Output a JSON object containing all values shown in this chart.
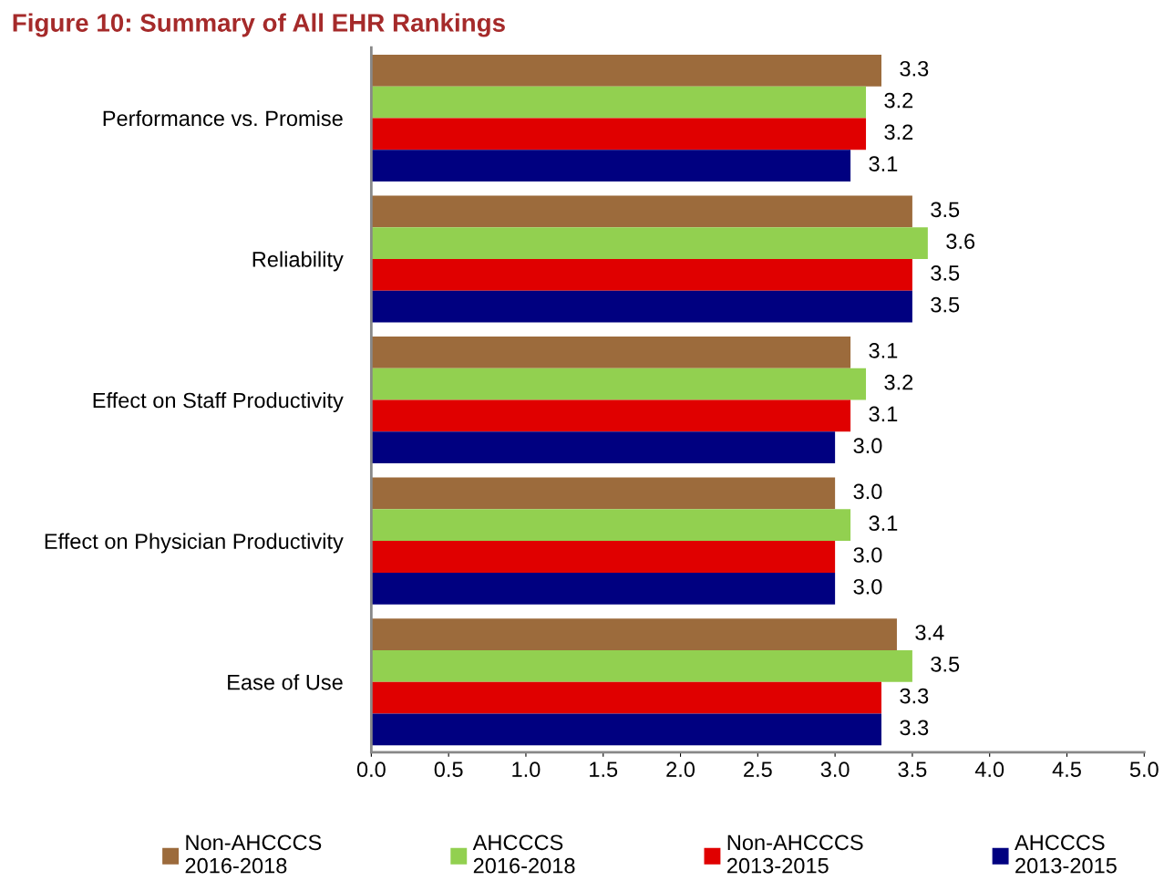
{
  "chart_data": {
    "type": "bar",
    "orientation": "horizontal",
    "title": "Figure 10: Summary of All EHR Rankings",
    "categories": [
      "Performance vs. Promise",
      "Reliability",
      "Effect on Staff Productivity",
      "Effect on Physician Productivity",
      "Ease of Use"
    ],
    "series": [
      {
        "name": "Non-AHCCCS\n2016-2018",
        "color": "#9c6b3c",
        "values": [
          3.3,
          3.5,
          3.1,
          3.0,
          3.4
        ],
        "value_labels": [
          "3.3",
          "3.5",
          "3.1",
          "3.0",
          "3.4"
        ]
      },
      {
        "name": "AHCCCS\n2016-2018",
        "color": "#92d050",
        "values": [
          3.2,
          3.6,
          3.2,
          3.1,
          3.5
        ],
        "value_labels": [
          "3.2",
          "3.6",
          "3.2",
          "3.1",
          "3.5"
        ]
      },
      {
        "name": "Non-AHCCCS\n2013-2015",
        "color": "#e00000",
        "values": [
          3.2,
          3.5,
          3.1,
          3.0,
          3.3
        ],
        "value_labels": [
          "3.2",
          "3.5",
          "3.1",
          "3.0",
          "3.3"
        ]
      },
      {
        "name": "AHCCCS\n2013-2015",
        "color": "#000080",
        "values": [
          3.1,
          3.5,
          3.0,
          3.0,
          3.3
        ],
        "value_labels": [
          "3.1",
          "3.5",
          "3.0",
          "3.0",
          "3.3"
        ]
      }
    ],
    "xlim": [
      0,
      5
    ],
    "xticks": [
      {
        "value": 0,
        "label": "0.0"
      },
      {
        "value": 0.5,
        "label": "0.5"
      },
      {
        "value": 1,
        "label": "1.0"
      },
      {
        "value": 1.5,
        "label": "1.5"
      },
      {
        "value": 2,
        "label": "2.0"
      },
      {
        "value": 2.5,
        "label": "2.5"
      },
      {
        "value": 3,
        "label": "3.0"
      },
      {
        "value": 3.5,
        "label": "3.5"
      },
      {
        "value": 4,
        "label": "4.0"
      },
      {
        "value": 4.5,
        "label": "4.5"
      },
      {
        "value": 5,
        "label": "5.0"
      }
    ],
    "grid": false,
    "legend": "bottom"
  }
}
